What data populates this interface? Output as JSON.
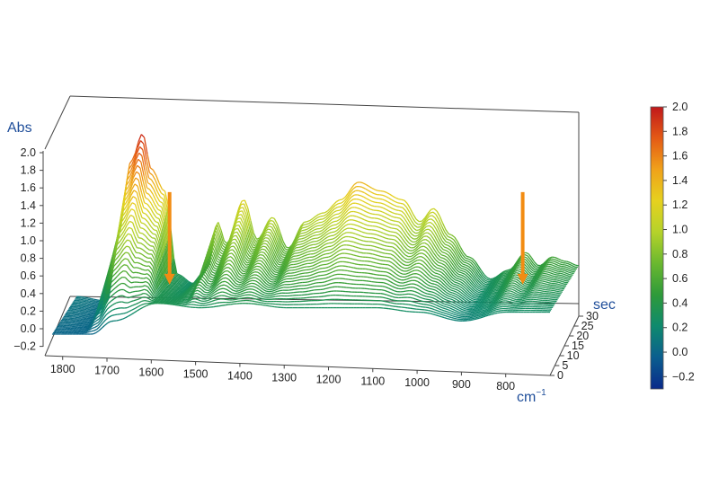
{
  "chart_data": {
    "type": "waterfall-3d",
    "xlabel": "cm",
    "xlabel_exponent": "−1",
    "ylabel": "Abs",
    "zlabel": "sec",
    "x_range": [
      1840,
      700
    ],
    "x_ticks": [
      "1800",
      "1700",
      "1600",
      "1500",
      "1400",
      "1300",
      "1200",
      "1100",
      "1000",
      "900",
      "800"
    ],
    "y_range": [
      -0.3,
      2.0
    ],
    "y_ticks": [
      "2.0",
      "1.8",
      "1.6",
      "1.4",
      "1.2",
      "1.0",
      "0.8",
      "0.6",
      "0.4",
      "0.2",
      "0.0",
      "−0.2"
    ],
    "z_range": [
      0,
      30
    ],
    "z_ticks": [
      "0",
      "5",
      "10",
      "15",
      "20",
      "25",
      "30"
    ],
    "spectra_count": 31,
    "peaks_at_t30": [
      {
        "x": 1840,
        "y": 0.1
      },
      {
        "x": 1770,
        "y": 0.05
      },
      {
        "x": 1745,
        "y": 0.8
      },
      {
        "x": 1715,
        "y": 1.65
      },
      {
        "x": 1690,
        "y": 1.95
      },
      {
        "x": 1670,
        "y": 1.55
      },
      {
        "x": 1640,
        "y": 1.3
      },
      {
        "x": 1610,
        "y": 0.35
      },
      {
        "x": 1575,
        "y": 0.25
      },
      {
        "x": 1540,
        "y": 0.45
      },
      {
        "x": 1520,
        "y": 0.95
      },
      {
        "x": 1500,
        "y": 0.7
      },
      {
        "x": 1460,
        "y": 1.2
      },
      {
        "x": 1430,
        "y": 0.75
      },
      {
        "x": 1395,
        "y": 1.0
      },
      {
        "x": 1360,
        "y": 0.65
      },
      {
        "x": 1320,
        "y": 0.95
      },
      {
        "x": 1280,
        "y": 1.05
      },
      {
        "x": 1240,
        "y": 1.2
      },
      {
        "x": 1200,
        "y": 1.4
      },
      {
        "x": 1150,
        "y": 1.3
      },
      {
        "x": 1100,
        "y": 1.2
      },
      {
        "x": 1060,
        "y": 0.95
      },
      {
        "x": 1030,
        "y": 1.1
      },
      {
        "x": 990,
        "y": 0.8
      },
      {
        "x": 950,
        "y": 0.55
      },
      {
        "x": 900,
        "y": 0.3
      },
      {
        "x": 860,
        "y": 0.4
      },
      {
        "x": 820,
        "y": 0.6
      },
      {
        "x": 790,
        "y": 0.45
      },
      {
        "x": 760,
        "y": 0.55
      },
      {
        "x": 730,
        "y": 0.5
      },
      {
        "x": 700,
        "y": 0.45
      }
    ],
    "peaks_at_t0": [
      {
        "x": 1840,
        "y": 0.0
      },
      {
        "x": 1750,
        "y": 0.0
      },
      {
        "x": 1700,
        "y": 0.15
      },
      {
        "x": 1600,
        "y": 0.35
      },
      {
        "x": 1500,
        "y": 0.3
      },
      {
        "x": 1400,
        "y": 0.35
      },
      {
        "x": 1300,
        "y": 0.3
      },
      {
        "x": 1200,
        "y": 0.3
      },
      {
        "x": 1100,
        "y": 0.3
      },
      {
        "x": 1000,
        "y": 0.25
      },
      {
        "x": 900,
        "y": 0.15
      },
      {
        "x": 800,
        "y": 0.25
      },
      {
        "x": 700,
        "y": 0.25
      }
    ],
    "arrows": [
      {
        "x": 1600,
        "direction": "down",
        "color": "#f28c13"
      },
      {
        "x": 795,
        "direction": "down",
        "color": "#f28c13"
      }
    ],
    "colorbar": {
      "ticks": [
        "2.0",
        "1.8",
        "1.6",
        "1.4",
        "1.2",
        "1.0",
        "0.8",
        "0.6",
        "0.4",
        "0.2",
        "0.0",
        "−0.2"
      ],
      "range": [
        -0.3,
        2.0
      ],
      "colors": [
        "#0a2a8a",
        "#0b5e8f",
        "#0e8a6e",
        "#2e9a3a",
        "#6ab82f",
        "#b5d22a",
        "#e6d11f",
        "#f0a21a",
        "#e45a15",
        "#c0181b"
      ]
    },
    "grid": false
  }
}
